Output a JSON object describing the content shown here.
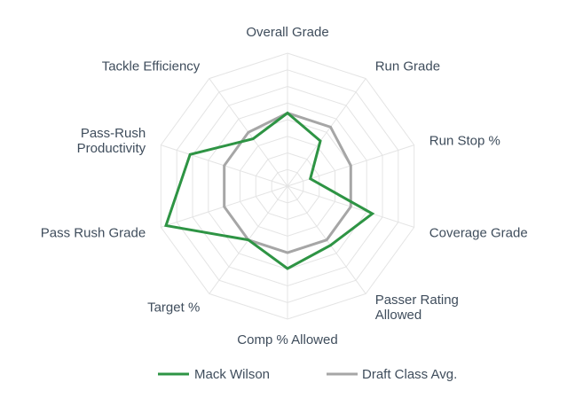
{
  "chart_data": {
    "type": "radar",
    "title": "",
    "categories": [
      "Overall Grade",
      "Run Grade",
      "Run Stop %",
      "Coverage Grade",
      "Passer Rating Allowed",
      "Comp % Allowed",
      "Target %",
      "Pass Rush Grade",
      "Pass-Rush Productivity",
      "Tackle Efficiency"
    ],
    "category_lines": [
      [
        "Overall Grade"
      ],
      [
        "Run Grade"
      ],
      [
        "Run Stop %"
      ],
      [
        "Coverage Grade"
      ],
      [
        "Passer Rating",
        "Allowed"
      ],
      [
        "Comp % Allowed"
      ],
      [
        "Target %"
      ],
      [
        "Pass Rush Grade"
      ],
      [
        "Pass-Rush",
        "Productivity"
      ],
      [
        "Tackle Efficiency"
      ]
    ],
    "series": [
      {
        "name": "Mack Wilson",
        "color": "#2e9444",
        "values": [
          0.55,
          0.42,
          0.18,
          0.67,
          0.55,
          0.62,
          0.5,
          0.96,
          0.77,
          0.44
        ]
      },
      {
        "name": "Draft Class Avg.",
        "color": "#a6a6a6",
        "values": [
          0.55,
          0.55,
          0.5,
          0.5,
          0.5,
          0.5,
          0.5,
          0.5,
          0.5,
          0.5
        ]
      }
    ],
    "range": [
      0,
      1
    ],
    "rings": 8,
    "grid": true,
    "legend": "bottom"
  }
}
